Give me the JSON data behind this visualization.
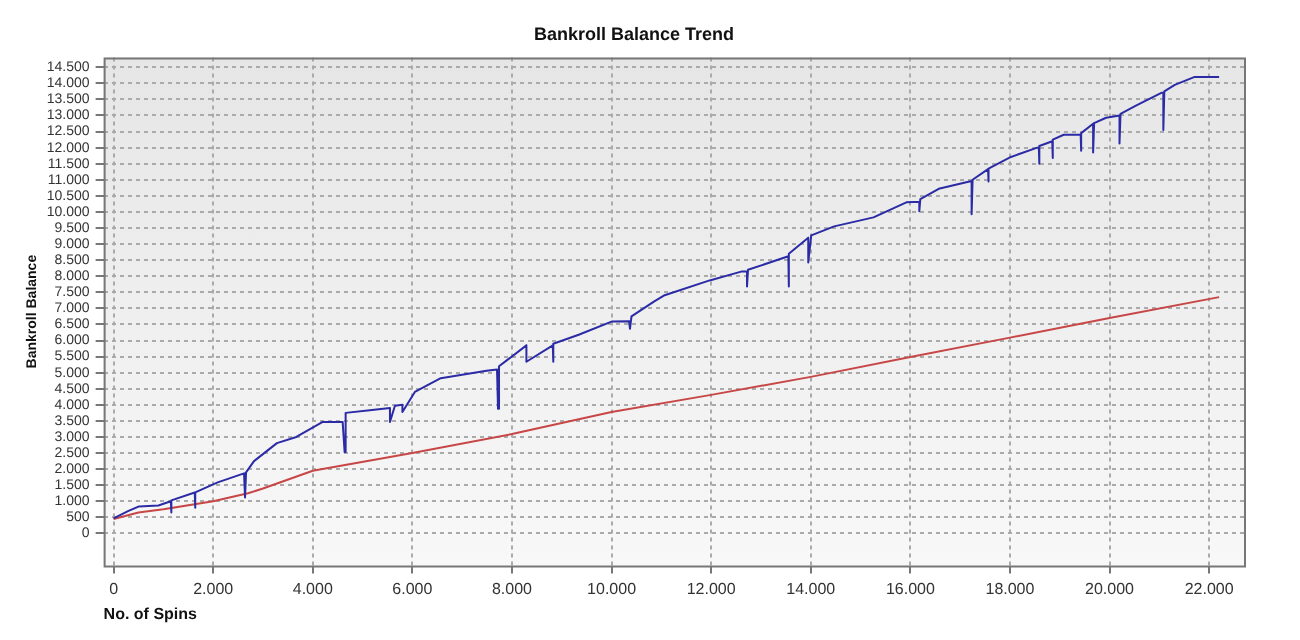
{
  "chart_data": {
    "type": "line",
    "title": "Bankroll Balance Trend",
    "xlabel": "No. of Spins",
    "ylabel": "Bankroll Balance",
    "xlim": [
      -200,
      22700
    ],
    "ylim": [
      -1000,
      14800
    ],
    "xticks": [
      {
        "value": 0,
        "label": "0"
      },
      {
        "value": 2000,
        "label": "2.000"
      },
      {
        "value": 4000,
        "label": "4.000"
      },
      {
        "value": 6000,
        "label": "6.000"
      },
      {
        "value": 8000,
        "label": "8.000"
      },
      {
        "value": 10000,
        "label": "10.000"
      },
      {
        "value": 12000,
        "label": "12.000"
      },
      {
        "value": 14000,
        "label": "14.000"
      },
      {
        "value": 16000,
        "label": "16.000"
      },
      {
        "value": 18000,
        "label": "18.000"
      },
      {
        "value": 20000,
        "label": "20.000"
      },
      {
        "value": 22000,
        "label": "22.000"
      }
    ],
    "yticks": [
      {
        "value": 0,
        "label": "0"
      },
      {
        "value": 500,
        "label": "500"
      },
      {
        "value": 1000,
        "label": "1.000"
      },
      {
        "value": 1500,
        "label": "1.500"
      },
      {
        "value": 2000,
        "label": "2.000"
      },
      {
        "value": 2500,
        "label": "2.500"
      },
      {
        "value": 3000,
        "label": "3.000"
      },
      {
        "value": 3500,
        "label": "3.500"
      },
      {
        "value": 4000,
        "label": "4.000"
      },
      {
        "value": 4500,
        "label": "4.500"
      },
      {
        "value": 5000,
        "label": "5.000"
      },
      {
        "value": 5500,
        "label": "5.500"
      },
      {
        "value": 6000,
        "label": "6.000"
      },
      {
        "value": 6500,
        "label": "6.500"
      },
      {
        "value": 7000,
        "label": "7.000"
      },
      {
        "value": 7500,
        "label": "7.500"
      },
      {
        "value": 8000,
        "label": "8.000"
      },
      {
        "value": 8500,
        "label": "8.500"
      },
      {
        "value": 9000,
        "label": "9.000"
      },
      {
        "value": 9500,
        "label": "9.500"
      },
      {
        "value": 10000,
        "label": "10.000"
      },
      {
        "value": 10500,
        "label": "10.500"
      },
      {
        "value": 11000,
        "label": "11.000"
      },
      {
        "value": 11500,
        "label": "11.500"
      },
      {
        "value": 12000,
        "label": "12.000"
      },
      {
        "value": 12500,
        "label": "12.500"
      },
      {
        "value": 13000,
        "label": "13.000"
      },
      {
        "value": 13500,
        "label": "13.500"
      },
      {
        "value": 14000,
        "label": "14.000"
      },
      {
        "value": 14500,
        "label": "14.500"
      }
    ],
    "grid": true,
    "legend": false,
    "marker": "none",
    "line_style": "solid",
    "series": [
      {
        "color": "#2b2ba6",
        "x": [
          0,
          300,
          510,
          900,
          1150,
          1150,
          1170,
          1630,
          1630,
          1650,
          2090,
          2620,
          2640,
          2660,
          2820,
          3280,
          3670,
          4200,
          4600,
          4640,
          4660,
          5190,
          5550,
          5550,
          5650,
          5800,
          5800,
          6050,
          6570,
          7490,
          7700,
          7720,
          7740,
          8290,
          8290,
          8820,
          8820,
          8840,
          9340,
          10000,
          10350,
          10370,
          10400,
          10850,
          11050,
          11970,
          12620,
          12720,
          12720,
          12740,
          13550,
          13550,
          13570,
          13950,
          13950,
          14010,
          14470,
          15260,
          15920,
          16180,
          16180,
          16200,
          16570,
          17230,
          17230,
          17250,
          17560,
          17560,
          17580,
          18020,
          18550,
          18580,
          18580,
          18600,
          18850,
          18850,
          18870,
          19080,
          19420,
          19420,
          19440,
          19670,
          19670,
          19690,
          19930,
          20200,
          20200,
          20220,
          20520,
          21050,
          21080,
          21080,
          21100,
          21310,
          21710,
          22200
        ],
        "values": [
          470,
          700,
          840,
          870,
          1000,
          650,
          1030,
          1275,
          800,
          1280,
          1590,
          1870,
          1120,
          1900,
          2250,
          2810,
          3000,
          3470,
          3470,
          2530,
          3750,
          3840,
          3900,
          3470,
          3970,
          4000,
          3780,
          4400,
          4830,
          5060,
          5100,
          3880,
          5200,
          5850,
          5340,
          5850,
          5340,
          5900,
          6180,
          6590,
          6600,
          6370,
          6750,
          7210,
          7400,
          7870,
          8150,
          8150,
          7680,
          8200,
          8620,
          7680,
          8700,
          9200,
          8430,
          9270,
          9550,
          9830,
          10300,
          10320,
          10020,
          10400,
          10720,
          10960,
          9930,
          11000,
          11330,
          10950,
          11350,
          11710,
          12000,
          12000,
          11500,
          12050,
          12200,
          11680,
          12250,
          12400,
          12400,
          11900,
          12450,
          12740,
          11850,
          12760,
          12930,
          13000,
          12130,
          13050,
          13300,
          13710,
          13710,
          12550,
          13750,
          13950,
          14200,
          14200
        ]
      },
      {
        "color": "#c84646",
        "x": [
          0,
          500,
          1000,
          2000,
          2700,
          3000,
          4000,
          6000,
          8000,
          10000,
          12000,
          14000,
          16000,
          18000,
          20000,
          22200
        ],
        "values": [
          450,
          650,
          750,
          1000,
          1250,
          1400,
          1950,
          2500,
          3090,
          3780,
          4310,
          4870,
          5490,
          6090,
          6700,
          7350
        ]
      }
    ]
  }
}
